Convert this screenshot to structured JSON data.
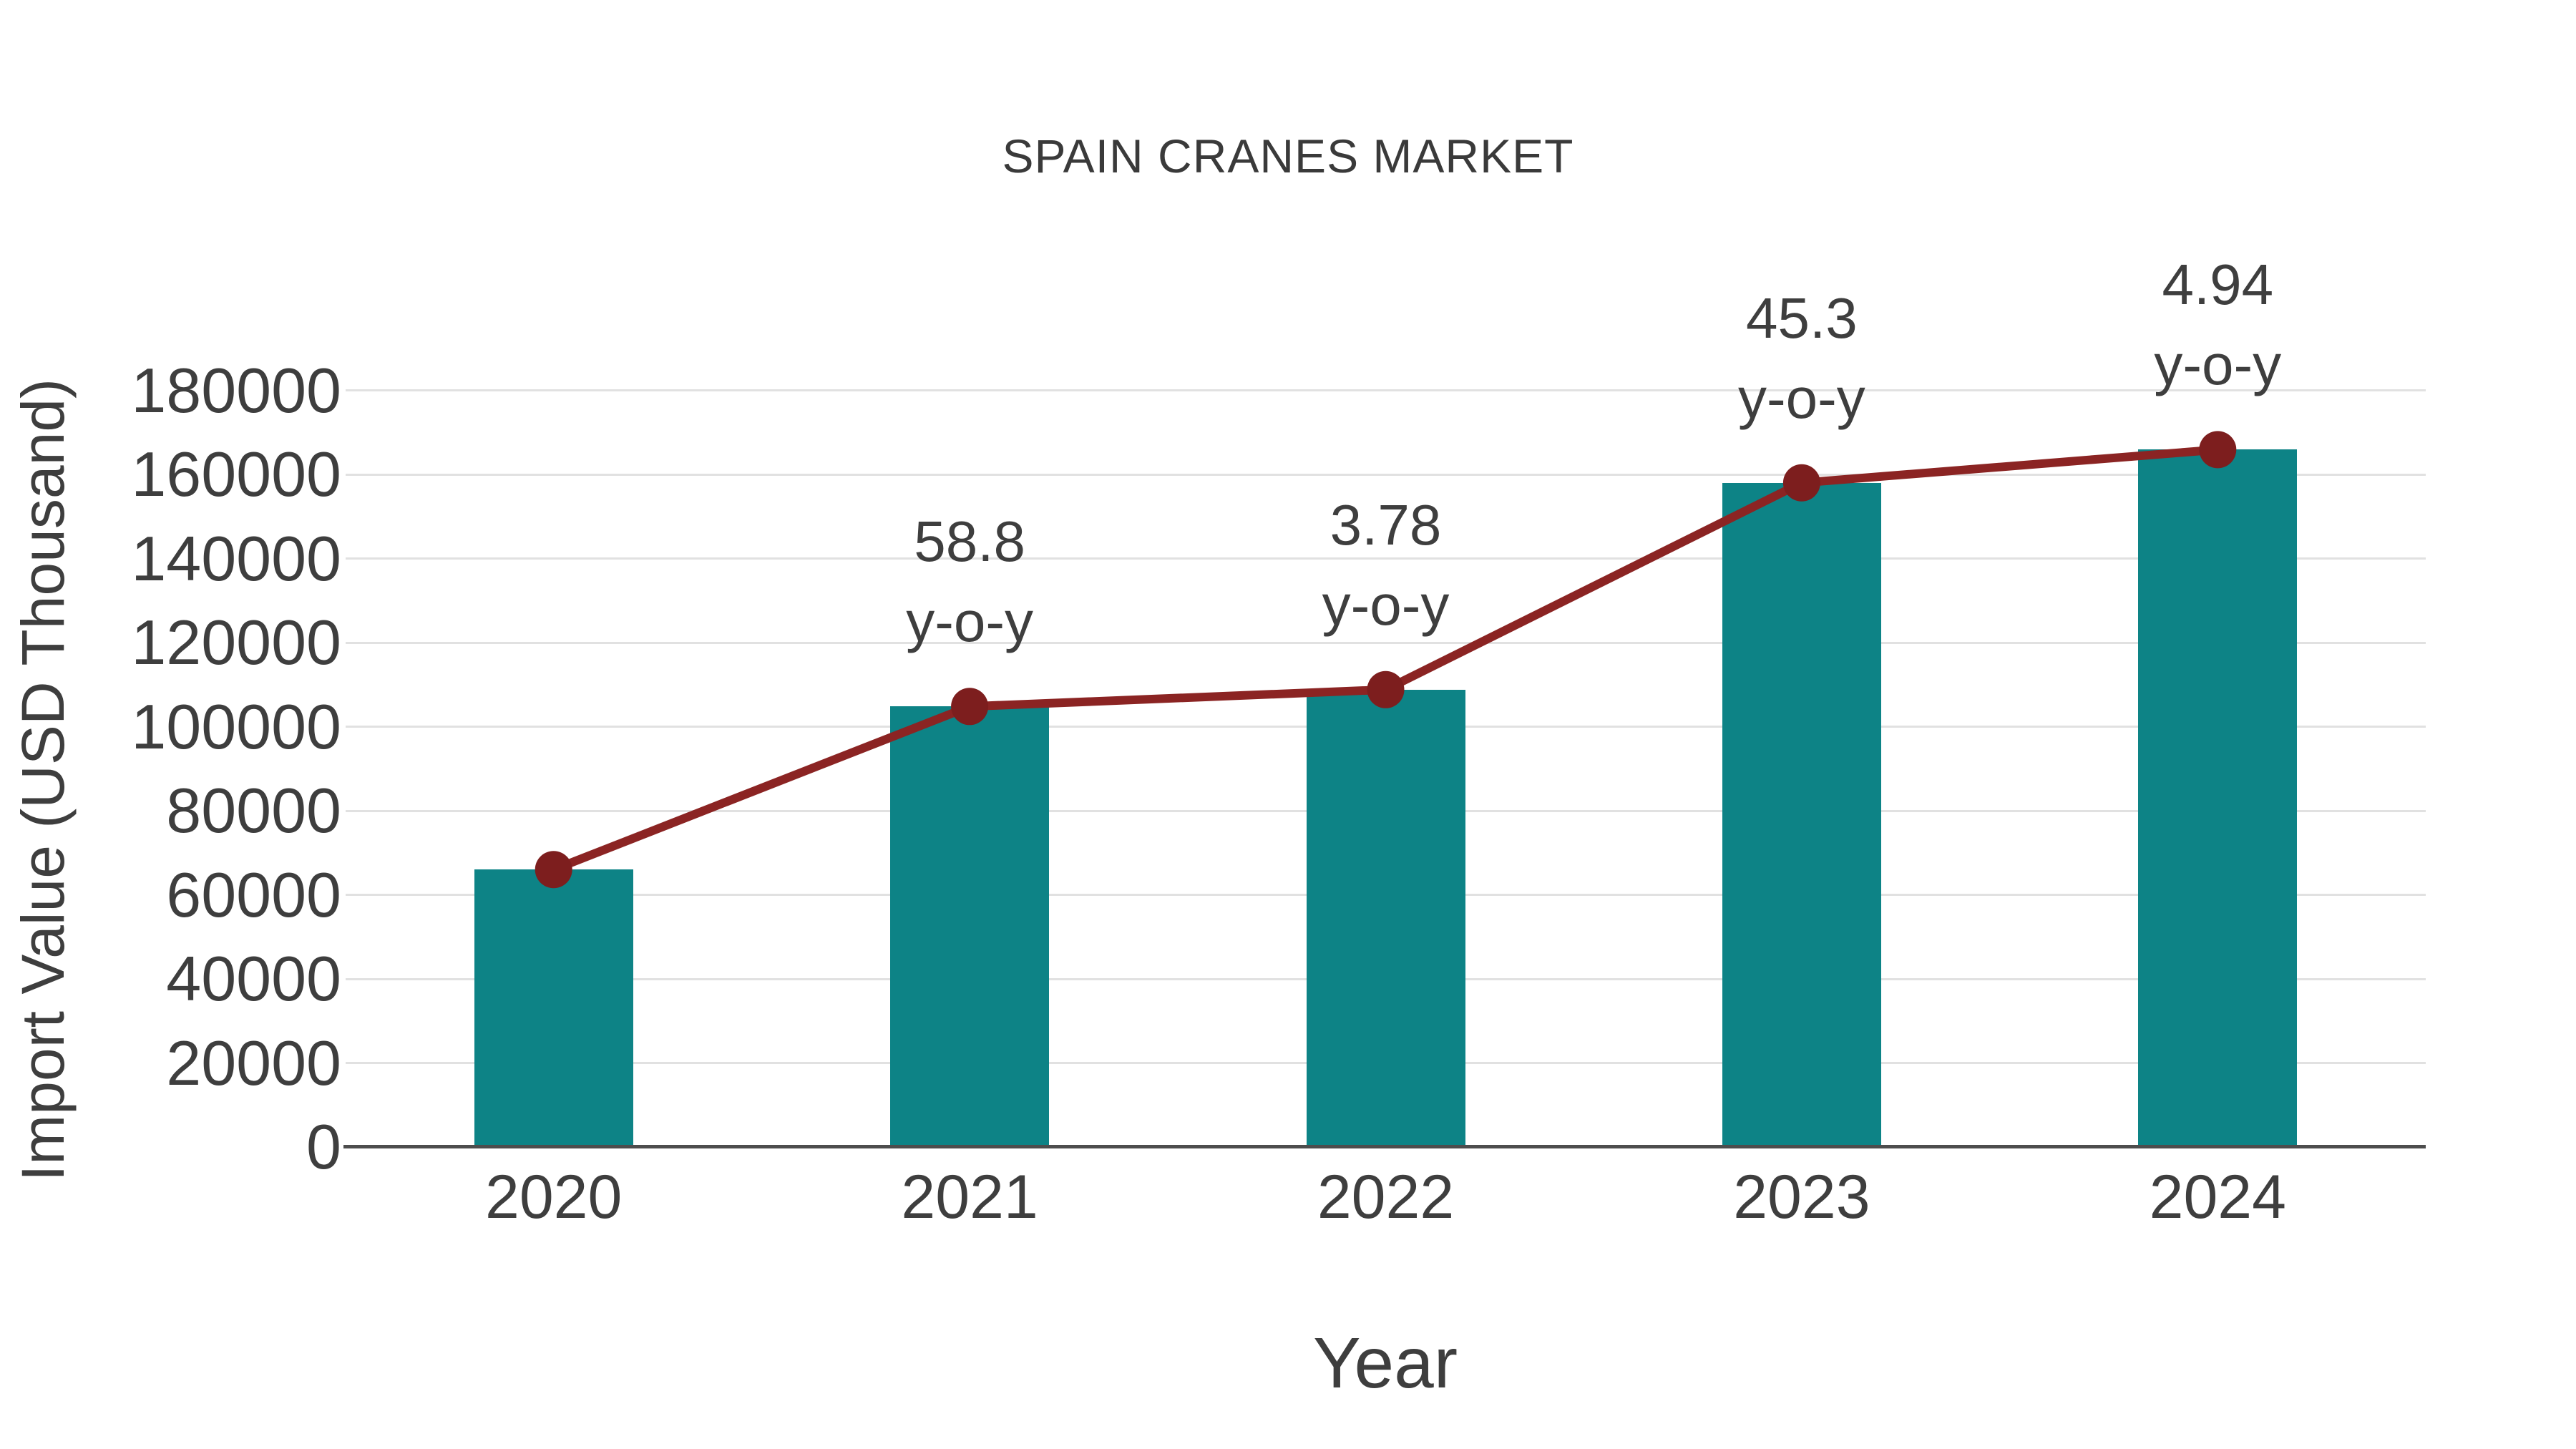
{
  "chart_data": {
    "type": "bar+line",
    "title": "SPAIN CRANES MARKET",
    "xlabel": "Year",
    "ylabel": "Import Value (USD Thousand)",
    "categories": [
      "2020",
      "2021",
      "2022",
      "2023",
      "2024"
    ],
    "series": [
      {
        "name": "Import Value (USD Thousand)",
        "type": "bar",
        "values": [
          66000,
          104800,
          108800,
          158000,
          165900
        ]
      },
      {
        "name": "y-o-y trend line",
        "type": "line",
        "values": [
          66000,
          104800,
          108800,
          158000,
          165900
        ]
      }
    ],
    "point_labels": [
      null,
      "58.8",
      "3.78",
      "45.3",
      "4.94"
    ],
    "point_label_suffix": "y-o-y",
    "ylim": [
      0,
      180000
    ],
    "ytick_step": 20000,
    "yticks": [
      "0",
      "20000",
      "40000",
      "60000",
      "80000",
      "100000",
      "120000",
      "140000",
      "160000",
      "180000"
    ],
    "grid": "horizontal-only",
    "legend": "none",
    "colors": {
      "bar": "#0D8386",
      "line": "#8B2423",
      "marker": "#7D1E1E",
      "grid": "#E1E1E1",
      "axis_line": "#4D4D4D",
      "text": "#3E3E3E"
    }
  }
}
